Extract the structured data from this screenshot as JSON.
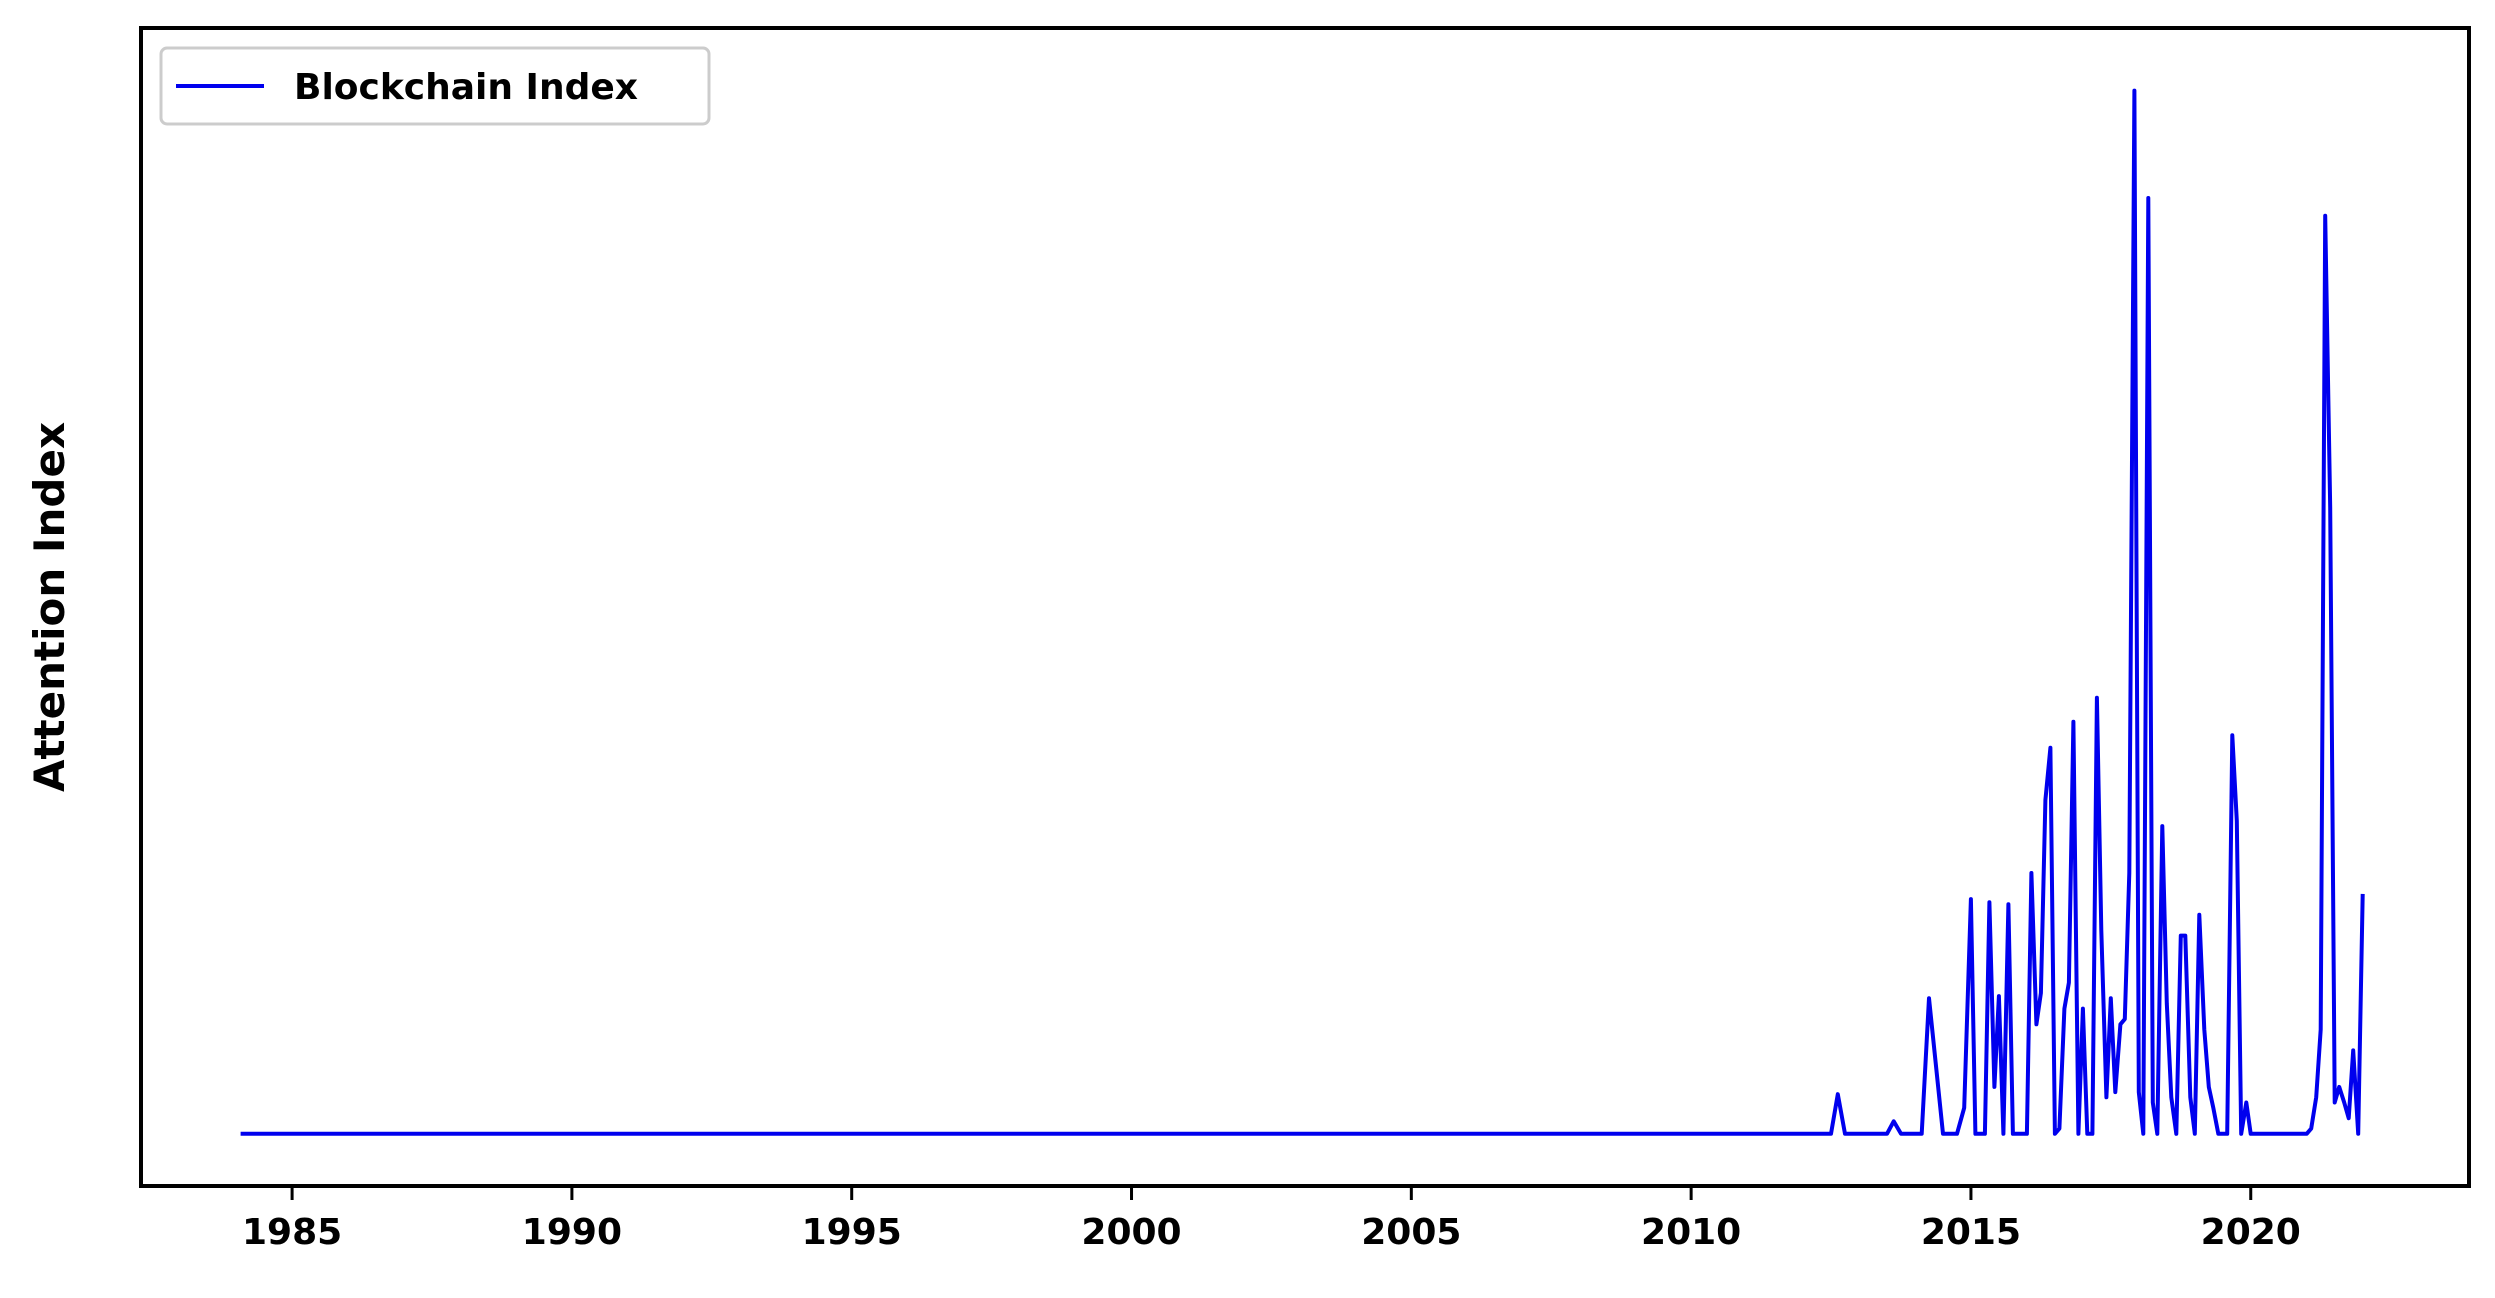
{
  "chart_data": {
    "type": "line",
    "title": "",
    "xlabel": "",
    "ylabel": "Attention Index",
    "xlim": [
      1982.3,
      2023.9
    ],
    "ylim": [
      -0.05,
      1.06
    ],
    "x_ticks": [
      1985,
      1990,
      1995,
      2000,
      2005,
      2010,
      2015,
      2020
    ],
    "y_ticks_shown": false,
    "grid": false,
    "legend": {
      "position": "top-left",
      "entries": [
        "Blockchain Index"
      ]
    },
    "colors": {
      "series": "#0000ee",
      "axes": "#000000",
      "background": "#ffffff"
    },
    "series": [
      {
        "name": "Blockchain Index",
        "x": [
          1984.08,
          2012.5,
          2012.62,
          2012.75,
          2013.5,
          2013.62,
          2013.75,
          2014.0,
          2014.12,
          2014.25,
          2014.5,
          2014.75,
          2014.88,
          2015.0,
          2015.08,
          2015.25,
          2015.33,
          2015.42,
          2015.5,
          2015.58,
          2015.67,
          2015.75,
          2015.83,
          2015.92,
          2016.0,
          2016.08,
          2016.17,
          2016.25,
          2016.33,
          2016.42,
          2016.5,
          2016.58,
          2016.67,
          2016.75,
          2016.83,
          2016.92,
          2017.0,
          2017.08,
          2017.17,
          2017.25,
          2017.33,
          2017.42,
          2017.5,
          2017.58,
          2017.67,
          2017.75,
          2017.83,
          2017.92,
          2018.0,
          2018.08,
          2018.17,
          2018.25,
          2018.33,
          2018.42,
          2018.5,
          2018.58,
          2018.67,
          2018.75,
          2018.83,
          2018.92,
          2019.0,
          2019.08,
          2019.17,
          2019.25,
          2019.33,
          2019.42,
          2019.5,
          2019.58,
          2019.67,
          2019.75,
          2019.83,
          2019.92,
          2020.0,
          2020.08,
          2020.17,
          2020.25,
          2020.5,
          2021.0,
          2021.08,
          2021.17,
          2021.25,
          2021.33,
          2021.42,
          2021.5,
          2021.58,
          2021.67,
          2021.75,
          2021.83,
          2021.92,
          2022.0
        ],
        "y": [
          0.0,
          0.0,
          0.038,
          0.0,
          0.0,
          0.012,
          0.0,
          0.0,
          0.0,
          0.13,
          0.0,
          0.0,
          0.025,
          0.225,
          0.0,
          0.0,
          0.222,
          0.045,
          0.132,
          0.0,
          0.22,
          0.0,
          0.0,
          0.0,
          0.0,
          0.25,
          0.105,
          0.135,
          0.32,
          0.37,
          0.0,
          0.005,
          0.12,
          0.145,
          0.395,
          0.0,
          0.12,
          0.0,
          0.0,
          0.418,
          0.195,
          0.035,
          0.13,
          0.04,
          0.105,
          0.11,
          0.25,
          1.0,
          0.04,
          0.0,
          0.897,
          0.03,
          0.0,
          0.295,
          0.125,
          0.035,
          0.0,
          0.19,
          0.19,
          0.035,
          0.0,
          0.21,
          0.1,
          0.045,
          0.025,
          0.0,
          0.0,
          0.0,
          0.382,
          0.3,
          0.0,
          0.03,
          0.0,
          0.0,
          0.0,
          0.0,
          0.0,
          0.0,
          0.005,
          0.035,
          0.1,
          0.88,
          0.6,
          0.03,
          0.045,
          0.03,
          0.015,
          0.08,
          0.0,
          0.23
        ]
      }
    ]
  }
}
